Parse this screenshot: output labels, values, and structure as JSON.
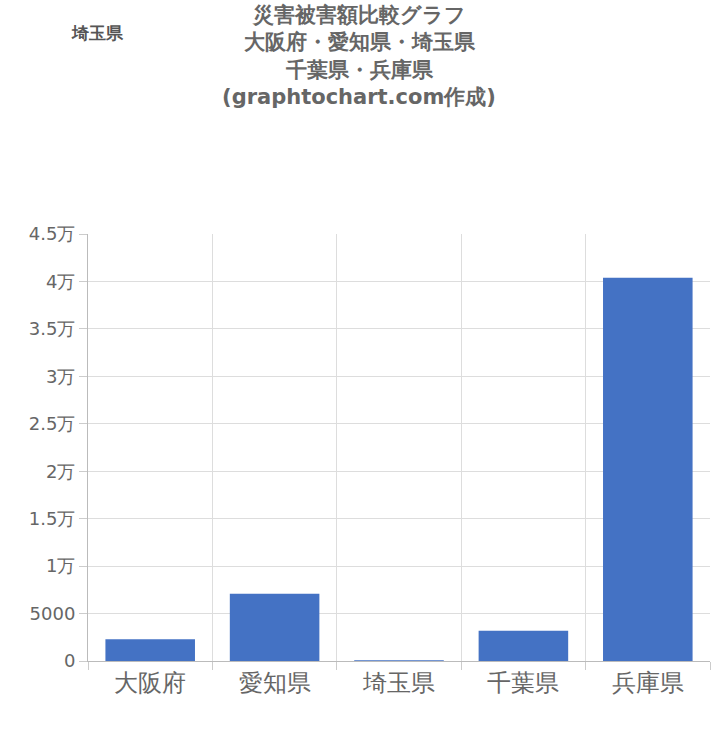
{
  "header": "埼玉県",
  "chart_data": {
    "type": "bar",
    "title": "災害被害額比較グラフ\n大阪府・愛知県・埼玉県\n千葉県・兵庫県\n(graphtochart.com作成)",
    "categories": [
      "大阪府",
      "愛知県",
      "埼玉県",
      "千葉県",
      "兵庫県"
    ],
    "values": [
      2300,
      7100,
      80,
      3200,
      40400
    ],
    "color": "#4472c4",
    "ylim": [
      0,
      45000
    ],
    "yticks": [
      0,
      5000,
      {
        "value": 10000,
        "label": "1万"
      },
      {
        "value": 15000,
        "label": "1.5万"
      },
      {
        "value": 20000,
        "label": "2万"
      },
      {
        "value": 25000,
        "label": "2.5万"
      },
      {
        "value": 30000,
        "label": "3万"
      },
      {
        "value": 35000,
        "label": "3.5万"
      },
      {
        "value": 40000,
        "label": "4万"
      },
      {
        "value": 45000,
        "label": "4.5万"
      }
    ],
    "grid": true
  }
}
